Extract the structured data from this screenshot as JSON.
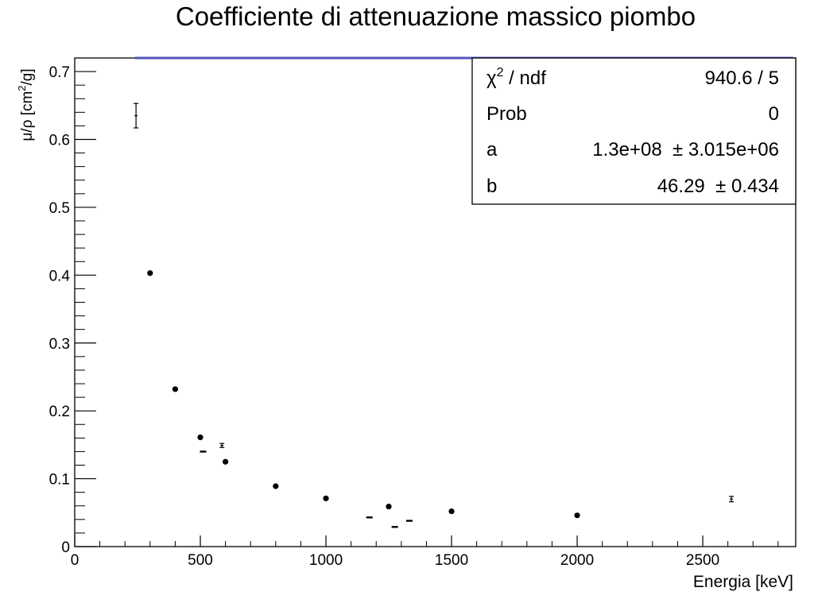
{
  "chart_data": {
    "type": "scatter",
    "title": "Coefficiente di attenuazione massico piombo",
    "xlabel": "Energia [keV]",
    "ylabel": {
      "base": "μ/ρ [cm",
      "sup": "2",
      "tail": "/g]"
    },
    "xlim": [
      0,
      2870
    ],
    "ylim": [
      0,
      0.72
    ],
    "grid": false,
    "x_ticks": [
      0,
      500,
      1000,
      1500,
      2000,
      2500
    ],
    "x_tick_labels": [
      "0",
      "500",
      "1000",
      "1500",
      "2000",
      "2500"
    ],
    "y_ticks": [
      0,
      0.1,
      0.2,
      0.3,
      0.4,
      0.5,
      0.6,
      0.7
    ],
    "y_tick_labels": [
      "0",
      "0.1",
      "0.2",
      "0.3",
      "0.4",
      "0.5",
      "0.6",
      "0.7"
    ],
    "points": [
      {
        "x": 244,
        "y": 0.635,
        "err": 0.018,
        "marker": "errorbar"
      },
      {
        "x": 300,
        "y": 0.403,
        "err": 0.002,
        "marker": "dot"
      },
      {
        "x": 400,
        "y": 0.232,
        "err": 0.002,
        "marker": "dot"
      },
      {
        "x": 500,
        "y": 0.161,
        "err": 0.002,
        "marker": "dot"
      },
      {
        "x": 511,
        "y": 0.14,
        "err": 0.001,
        "marker": "dash"
      },
      {
        "x": 586,
        "y": 0.149,
        "err": 0.003,
        "marker": "errorbar"
      },
      {
        "x": 600,
        "y": 0.125,
        "err": 0.002,
        "marker": "dot"
      },
      {
        "x": 800,
        "y": 0.089,
        "err": 0.002,
        "marker": "dot"
      },
      {
        "x": 1000,
        "y": 0.071,
        "err": 0.002,
        "marker": "dot"
      },
      {
        "x": 1173,
        "y": 0.043,
        "err": 0.001,
        "marker": "dash"
      },
      {
        "x": 1250,
        "y": 0.059,
        "err": 0.002,
        "marker": "dot"
      },
      {
        "x": 1274,
        "y": 0.029,
        "err": 0.001,
        "marker": "dash"
      },
      {
        "x": 1332,
        "y": 0.038,
        "err": 0.001,
        "marker": "dash"
      },
      {
        "x": 1500,
        "y": 0.052,
        "err": 0.002,
        "marker": "dot"
      },
      {
        "x": 2000,
        "y": 0.046,
        "err": 0.002,
        "marker": "dot"
      },
      {
        "x": 2614,
        "y": 0.07,
        "err": 0.004,
        "marker": "errorbar"
      }
    ],
    "fit": {
      "color": "#5555bb",
      "a": 130000000.0,
      "b": 46.29,
      "x_start": 240,
      "x_end": 2860
    },
    "stats_box": [
      {
        "label": "χ",
        "sup": "2",
        "label_tail": " / ndf",
        "value": "940.6 / 5"
      },
      {
        "label": "Prob",
        "sup": "",
        "label_tail": "",
        "value": "0"
      },
      {
        "label": "a",
        "sup": "",
        "label_tail": "",
        "value": "1.3e+08  ± 3.015e+06"
      },
      {
        "label": "b",
        "sup": "",
        "label_tail": "",
        "value": "46.29  ± 0.434"
      }
    ],
    "legend_position": "top-right"
  }
}
